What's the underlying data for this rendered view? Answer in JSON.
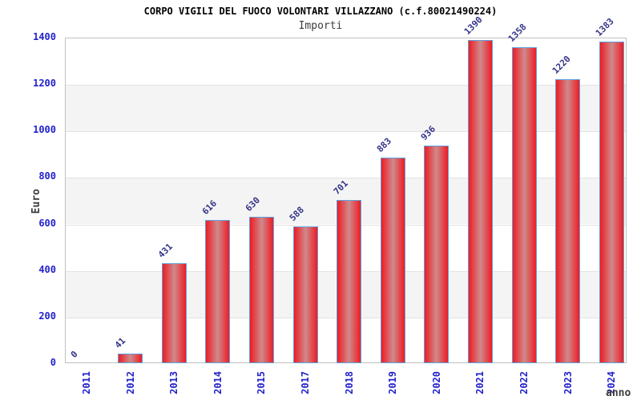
{
  "header": {
    "title": "CORPO VIGILI DEL FUOCO VOLONTARI VILLAZZANO (c.f.80021490224)",
    "subtitle": "Importi"
  },
  "chart_data": {
    "type": "bar",
    "title": "CORPO VIGILI DEL FUOCO VOLONTARI VILLAZZANO (c.f.80021490224)",
    "subtitle": "Importi",
    "xlabel": "anno",
    "ylabel": "Euro",
    "categories": [
      "2011",
      "2012",
      "2013",
      "2014",
      "2015",
      "2017",
      "2018",
      "2019",
      "2020",
      "2021",
      "2022",
      "2023",
      "2024"
    ],
    "values": [
      0,
      41,
      431,
      616,
      630,
      588,
      701,
      883,
      936,
      1390,
      1358,
      1220,
      1383
    ],
    "ylim": [
      0,
      1400
    ],
    "ytick_step": 200,
    "legend": "none",
    "grid": "horizontal gridlines with alternating gray bands",
    "bar_value_labels_rotation_deg": 45,
    "x_tick_rotation_deg": 90,
    "colors": {
      "bar_red": "#ee1c23",
      "bar_center": "#cf8a8c",
      "bar_border": "#5ba3e0",
      "tick_label_blue": "#2222cc",
      "value_label_navy": "#333388",
      "axis_title_gray": "#3c3c3c",
      "band_fill": "#f4f4f4",
      "gridline": "#e2e2e2",
      "plot_border": "#c0c0c0",
      "title_black": "#000000",
      "background": "#ffffff"
    }
  }
}
